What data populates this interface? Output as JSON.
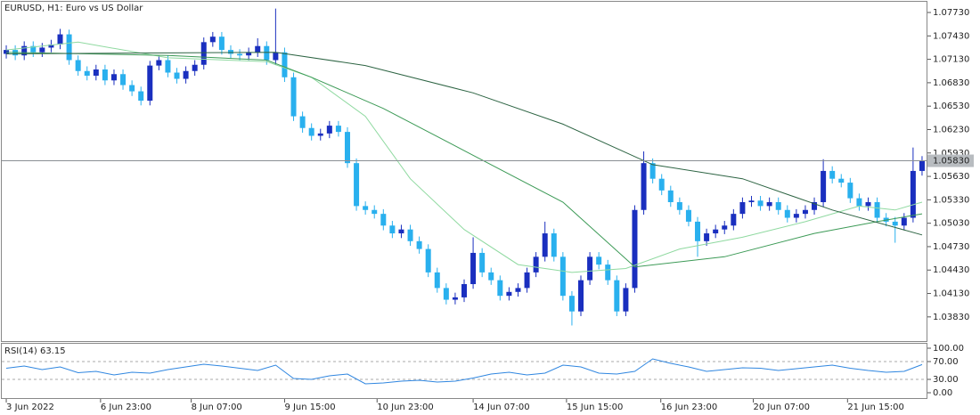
{
  "chart_data": [
    {
      "type": "candlestick",
      "title": "EURUSD, H1:  Euro vs US Dollar",
      "xlim": [
        -0.5,
        102.5
      ],
      "ylim": [
        1.0352,
        1.0789
      ],
      "yticks": [
        {
          "value": 1.0773,
          "label": "1.07730"
        },
        {
          "value": 1.0743,
          "label": "1.07430"
        },
        {
          "value": 1.0713,
          "label": "1.07130"
        },
        {
          "value": 1.0683,
          "label": "1.06830"
        },
        {
          "value": 1.0653,
          "label": "1.06530"
        },
        {
          "value": 1.0623,
          "label": "1.06230"
        },
        {
          "value": 1.0593,
          "label": "1.05930"
        },
        {
          "value": 1.0563,
          "label": "1.05630"
        },
        {
          "value": 1.0533,
          "label": "1.05330"
        },
        {
          "value": 1.0503,
          "label": "1.05030"
        },
        {
          "value": 1.0473,
          "label": "1.04730"
        },
        {
          "value": 1.0443,
          "label": "1.04430"
        },
        {
          "value": 1.0413,
          "label": "1.04130"
        },
        {
          "value": 1.0383,
          "label": "1.03830"
        }
      ],
      "xticks": [
        {
          "value": 0,
          "label": "3 Jun 2022"
        },
        {
          "value": 10.5,
          "label": "6 Jun 23:00"
        },
        {
          "value": 20.6,
          "label": "8 Jun 07:00"
        },
        {
          "value": 31,
          "label": "9 Jun 15:00"
        },
        {
          "value": 41.3,
          "label": "10 Jun 23:00"
        },
        {
          "value": 52,
          "label": "14 Jun 07:00"
        },
        {
          "value": 62.4,
          "label": "15 Jun 15:00"
        },
        {
          "value": 72.9,
          "label": "16 Jun 23:00"
        },
        {
          "value": 83.2,
          "label": "20 Jun 07:00"
        },
        {
          "value": 93.7,
          "label": "21 Jun 15:00"
        }
      ],
      "up_color": "#1a2fbf",
      "down_color": "#29b0ee",
      "candles": {
        "open": [
          1.072,
          1.0725,
          1.0718,
          1.073,
          1.0722,
          1.0728,
          1.0732,
          1.0745,
          1.0712,
          1.0698,
          1.0692,
          1.07,
          1.0686,
          1.0694,
          1.068,
          1.0672,
          1.066,
          1.0705,
          1.0712,
          1.0696,
          1.0688,
          1.0698,
          1.0706,
          1.0735,
          1.0742,
          1.0725,
          1.072,
          1.0718,
          1.0722,
          1.073,
          1.0712,
          1.0722,
          1.069,
          1.064,
          1.0625,
          1.0615,
          1.0618,
          1.0628,
          1.062,
          1.058,
          1.0525,
          1.052,
          1.0515,
          1.05,
          1.049,
          1.0495,
          1.048,
          1.047,
          1.044,
          1.042,
          1.0405,
          1.0408,
          1.0425,
          1.0465,
          1.044,
          1.043,
          1.041,
          1.0415,
          1.042,
          1.044,
          1.046,
          1.049,
          1.046,
          1.041,
          1.039,
          1.043,
          1.046,
          1.045,
          1.043,
          1.039,
          1.042,
          1.052,
          1.058,
          1.056,
          1.0545,
          1.053,
          1.052,
          1.0505,
          1.048,
          1.049,
          1.0495,
          1.05,
          1.0515,
          1.053,
          1.0532,
          1.0525,
          1.053,
          1.052,
          1.051,
          1.0515,
          1.052,
          1.053,
          1.057,
          1.056,
          1.0555,
          1.0535,
          1.0525,
          1.053,
          1.051,
          1.0505,
          1.05,
          1.051,
          1.057
        ],
        "high": [
          1.0731,
          1.0731,
          1.0736,
          1.0736,
          1.0734,
          1.0738,
          1.0752,
          1.0751,
          1.0718,
          1.0704,
          1.0706,
          1.0706,
          1.07,
          1.07,
          1.0686,
          1.0678,
          1.0711,
          1.0718,
          1.0718,
          1.0702,
          1.0704,
          1.0712,
          1.0741,
          1.0748,
          1.0748,
          1.0731,
          1.0726,
          1.0728,
          1.074,
          1.0736,
          1.0778,
          1.0728,
          1.0696,
          1.0646,
          1.0631,
          1.0624,
          1.0634,
          1.0634,
          1.0626,
          1.0586,
          1.0531,
          1.0526,
          1.0521,
          1.0506,
          1.0501,
          1.0501,
          1.0486,
          1.0476,
          1.0446,
          1.0426,
          1.0414,
          1.0431,
          1.0485,
          1.0471,
          1.0446,
          1.0436,
          1.0421,
          1.0426,
          1.0446,
          1.0466,
          1.0505,
          1.0496,
          1.0466,
          1.0416,
          1.0436,
          1.0466,
          1.0466,
          1.0456,
          1.0436,
          1.0426,
          1.0526,
          1.0595,
          1.0586,
          1.0566,
          1.0551,
          1.0536,
          1.0526,
          1.0511,
          1.0496,
          1.0501,
          1.0506,
          1.0521,
          1.0536,
          1.0538,
          1.0538,
          1.0536,
          1.0536,
          1.0526,
          1.0521,
          1.0526,
          1.0536,
          1.0585,
          1.0576,
          1.0566,
          1.0561,
          1.0541,
          1.0536,
          1.0536,
          1.0516,
          1.0511,
          1.0516,
          1.06,
          1.0589
        ],
        "low": [
          1.0714,
          1.0712,
          1.0712,
          1.0716,
          1.0716,
          1.0722,
          1.0726,
          1.0706,
          1.0692,
          1.0686,
          1.0686,
          1.068,
          1.068,
          1.0674,
          1.0666,
          1.0654,
          1.0654,
          1.0699,
          1.069,
          1.0682,
          1.0682,
          1.0692,
          1.07,
          1.0729,
          1.0719,
          1.0714,
          1.0712,
          1.0712,
          1.0716,
          1.0706,
          1.0706,
          1.0684,
          1.0634,
          1.0619,
          1.0609,
          1.0609,
          1.0612,
          1.0614,
          1.0574,
          1.0519,
          1.0514,
          1.0509,
          1.0494,
          1.0484,
          1.0484,
          1.0474,
          1.0464,
          1.0434,
          1.0414,
          1.0399,
          1.0399,
          1.0402,
          1.0419,
          1.0434,
          1.0424,
          1.0404,
          1.0404,
          1.0409,
          1.0414,
          1.0434,
          1.0454,
          1.0454,
          1.0404,
          1.0372,
          1.0384,
          1.0424,
          1.0444,
          1.0424,
          1.0384,
          1.0384,
          1.0414,
          1.0514,
          1.0554,
          1.0539,
          1.0524,
          1.0514,
          1.0499,
          1.046,
          1.0474,
          1.0484,
          1.0489,
          1.0494,
          1.0509,
          1.0524,
          1.0519,
          1.0519,
          1.0514,
          1.0504,
          1.0504,
          1.0509,
          1.0514,
          1.0524,
          1.0554,
          1.0549,
          1.0529,
          1.0519,
          1.0519,
          1.0504,
          1.0499,
          1.0478,
          1.0494,
          1.0504,
          1.0564
        ],
        "close": [
          1.0725,
          1.0718,
          1.073,
          1.0722,
          1.0728,
          1.0732,
          1.0745,
          1.0712,
          1.0698,
          1.0692,
          1.07,
          1.0686,
          1.0694,
          1.068,
          1.0672,
          1.066,
          1.0705,
          1.0712,
          1.0696,
          1.0688,
          1.0698,
          1.0706,
          1.0735,
          1.0742,
          1.0725,
          1.072,
          1.0718,
          1.0722,
          1.073,
          1.0712,
          1.0722,
          1.069,
          1.064,
          1.0625,
          1.0615,
          1.0618,
          1.0628,
          1.062,
          1.058,
          1.0525,
          1.052,
          1.0515,
          1.05,
          1.049,
          1.0495,
          1.048,
          1.047,
          1.044,
          1.042,
          1.0405,
          1.0408,
          1.0425,
          1.0465,
          1.044,
          1.043,
          1.041,
          1.0415,
          1.042,
          1.044,
          1.046,
          1.049,
          1.046,
          1.041,
          1.039,
          1.043,
          1.046,
          1.045,
          1.043,
          1.039,
          1.042,
          1.052,
          1.058,
          1.056,
          1.0545,
          1.053,
          1.052,
          1.0505,
          1.048,
          1.049,
          1.0495,
          1.05,
          1.0515,
          1.053,
          1.0532,
          1.0525,
          1.053,
          1.052,
          1.051,
          1.0515,
          1.052,
          1.053,
          1.057,
          1.056,
          1.0555,
          1.0535,
          1.0525,
          1.053,
          1.051,
          1.0505,
          1.05,
          1.051,
          1.057,
          1.0583
        ]
      },
      "moving_averages": [
        {
          "color": "#8fd9a0",
          "x": [
            0,
            8,
            18,
            29,
            34,
            40,
            45,
            51,
            57,
            63,
            69,
            75,
            82,
            89,
            95,
            99,
            102
          ],
          "values": [
            1.0725,
            1.0735,
            1.0715,
            1.071,
            1.069,
            1.064,
            1.056,
            1.0495,
            1.045,
            1.044,
            1.0445,
            1.047,
            1.0485,
            1.0505,
            1.0525,
            1.052,
            1.053
          ]
        },
        {
          "color": "#3c9a56",
          "x": [
            0,
            18,
            29,
            34,
            42,
            52,
            62,
            70,
            80,
            90,
            97,
            102
          ],
          "values": [
            1.0722,
            1.0718,
            1.0712,
            1.069,
            1.065,
            1.059,
            1.053,
            1.0447,
            1.046,
            1.049,
            1.0505,
            1.0515
          ]
        },
        {
          "color": "#2d6443",
          "x": [
            0,
            30,
            40,
            52,
            62,
            72,
            82,
            92,
            102
          ],
          "values": [
            1.072,
            1.0722,
            1.0705,
            1.067,
            1.063,
            1.0578,
            1.056,
            1.052,
            1.0488
          ]
        }
      ],
      "current_price": {
        "value": 1.0583,
        "label": "1.05830"
      }
    },
    {
      "type": "line",
      "title": "RSI(14) 63.15",
      "color": "#2f86e0",
      "xlim": [
        -0.5,
        102.5
      ],
      "ylim": [
        -10,
        110
      ],
      "yticks": [
        {
          "value": 100,
          "label": "100.00"
        },
        {
          "value": 70,
          "label": "70.00"
        },
        {
          "value": 30,
          "label": "30.00"
        },
        {
          "value": 0,
          "label": "0.00"
        }
      ],
      "levels": [
        70,
        30
      ],
      "x": [
        0,
        2,
        4,
        6,
        8,
        10,
        12,
        14,
        16,
        18,
        20,
        22,
        24,
        26,
        28,
        30,
        32,
        34,
        36,
        38,
        40,
        42,
        44,
        46,
        48,
        50,
        52,
        54,
        56,
        58,
        60,
        62,
        64,
        66,
        68,
        70,
        72,
        74,
        76,
        78,
        80,
        82,
        84,
        86,
        88,
        90,
        92,
        94,
        96,
        98,
        100,
        102
      ],
      "values": [
        55,
        60,
        52,
        58,
        45,
        48,
        40,
        46,
        44,
        52,
        58,
        64,
        60,
        55,
        50,
        62,
        32,
        30,
        38,
        42,
        20,
        22,
        26,
        28,
        24,
        26,
        33,
        42,
        46,
        40,
        44,
        62,
        58,
        44,
        42,
        48,
        76,
        66,
        58,
        48,
        52,
        56,
        55,
        50,
        54,
        58,
        62,
        55,
        50,
        46,
        48,
        63.15
      ]
    }
  ]
}
